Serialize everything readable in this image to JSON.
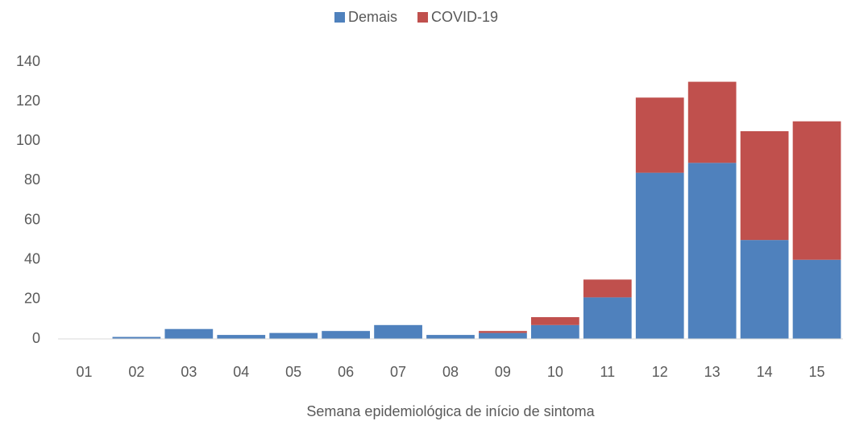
{
  "chart_data": {
    "type": "stacked_bar",
    "x_label": "Semana epidemiológica de início de sintoma",
    "categories": [
      "01",
      "02",
      "03",
      "04",
      "05",
      "06",
      "07",
      "08",
      "09",
      "10",
      "11",
      "12",
      "13",
      "14",
      "15"
    ],
    "series": [
      {
        "name": "Demais",
        "color": "#4f81bd",
        "values": [
          0,
          1,
          5,
          2,
          3,
          4,
          7,
          2,
          3,
          7,
          21,
          84,
          89,
          50,
          40
        ]
      },
      {
        "name": "COVID-19",
        "color": "#c0504d",
        "values": [
          0,
          0,
          0,
          0,
          0,
          0,
          0,
          0,
          1,
          4,
          9,
          38,
          41,
          55,
          70
        ]
      }
    ],
    "ylim": [
      0,
      140
    ],
    "yticks": [
      0,
      20,
      40,
      60,
      80,
      100,
      120,
      140
    ],
    "grid": false,
    "legend": "top"
  }
}
